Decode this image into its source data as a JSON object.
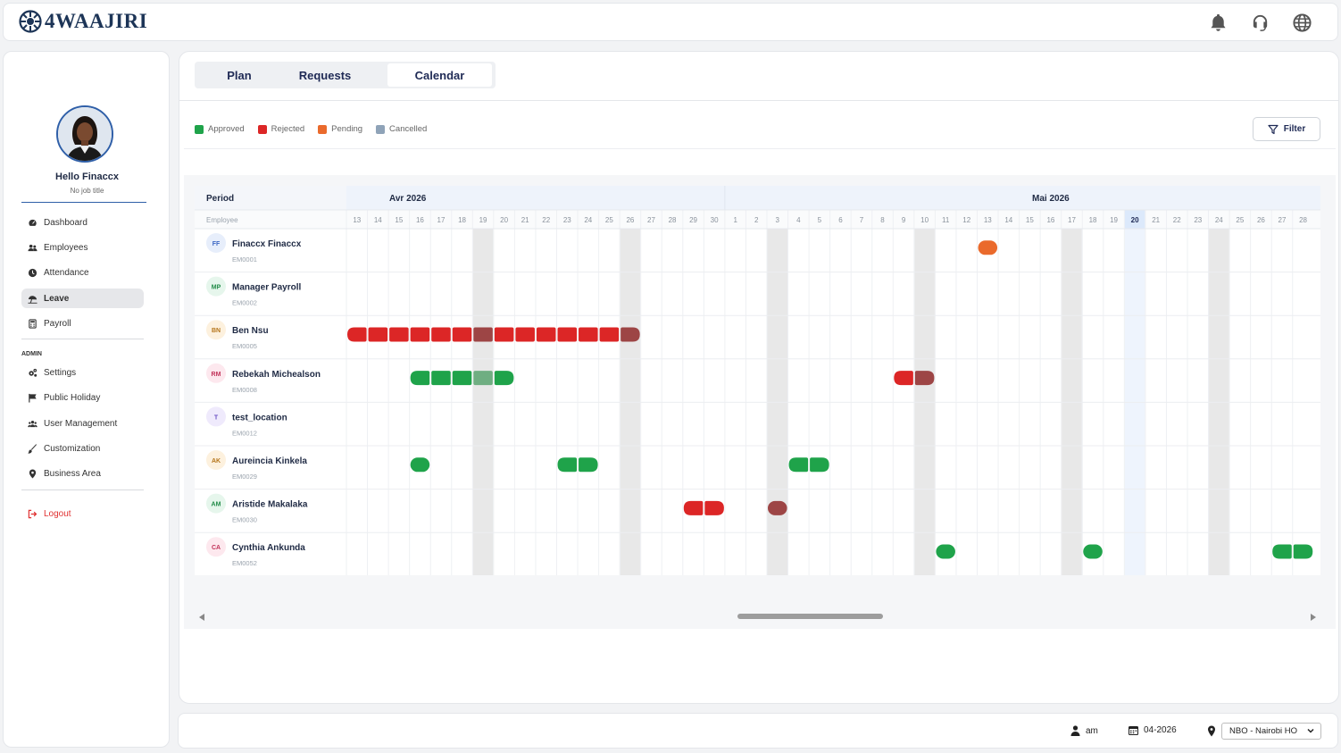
{
  "app": {
    "brand_number": "4",
    "brand_name": "WAAJIRI"
  },
  "topbar": {
    "icons": [
      "bell-icon",
      "headset-icon",
      "globe-icon"
    ]
  },
  "profile": {
    "greeting": "Hello Finaccx",
    "job_title": "No job title"
  },
  "nav": {
    "items": [
      {
        "label": "Dashboard",
        "icon": "dashboard-icon"
      },
      {
        "label": "Employees",
        "icon": "users-icon"
      },
      {
        "label": "Attendance",
        "icon": "clock-icon"
      },
      {
        "label": "Leave",
        "icon": "umbrella-icon",
        "active": true
      },
      {
        "label": "Payroll",
        "icon": "calculator-icon"
      }
    ],
    "admin_label": "ADMIN",
    "admin_items": [
      {
        "label": "Settings",
        "icon": "gears-icon"
      },
      {
        "label": "Public Holiday",
        "icon": "flag-icon"
      },
      {
        "label": "User Management",
        "icon": "user-group-icon"
      },
      {
        "label": "Customization",
        "icon": "brush-icon"
      },
      {
        "label": "Business Area",
        "icon": "location-pin-icon"
      }
    ],
    "logout": "Logout"
  },
  "tabs": [
    "Plan",
    "Requests",
    "Calendar"
  ],
  "active_tab": "Calendar",
  "legend": [
    {
      "label": "Approved",
      "color": "#1fa34a"
    },
    {
      "label": "Rejected",
      "color": "#dc2626"
    },
    {
      "label": "Pending",
      "color": "#ea6a2c"
    },
    {
      "label": "Cancelled",
      "color": "#8fa3b8"
    }
  ],
  "filter_label": "Filter",
  "calendar": {
    "period_label": "Period",
    "employee_label": "Employee",
    "months": [
      {
        "label": "Avr 2026",
        "days": [
          13,
          14,
          15,
          16,
          17,
          18,
          19,
          20,
          21,
          22,
          23,
          24,
          25,
          26,
          27,
          28,
          29,
          30
        ]
      },
      {
        "label": "Mai 2026",
        "days": [
          1,
          2,
          3,
          4,
          5,
          6,
          7,
          8,
          9,
          10,
          11,
          12,
          13,
          14,
          15,
          16,
          17,
          18,
          19,
          20,
          21,
          22,
          23,
          24,
          25,
          26,
          27,
          28
        ]
      }
    ],
    "weekend_days": [
      "Avr 19",
      "Avr 26",
      "Mai 3",
      "Mai 10",
      "Mai 17",
      "Mai 24"
    ],
    "today": "Mai 20",
    "employees": [
      {
        "initials": "FF",
        "name": "Finaccx Finaccx",
        "code": "EM0001",
        "avatar_bg": "#e7eefb",
        "avatar_fg": "#3b66c4",
        "leaves": [
          {
            "status": "pending",
            "days": [
              "Mai 13"
            ]
          }
        ]
      },
      {
        "initials": "MP",
        "name": "Manager Payroll",
        "code": "EM0002",
        "avatar_bg": "#e6f6ec",
        "avatar_fg": "#1f8a46",
        "leaves": []
      },
      {
        "initials": "BN",
        "name": "Ben Nsu",
        "code": "EM0005",
        "avatar_bg": "#fdf1de",
        "avatar_fg": "#b5751a",
        "leaves": [
          {
            "status": "rejected",
            "days": [
              "Avr 13",
              "Avr 14",
              "Avr 15",
              "Avr 16",
              "Avr 17",
              "Avr 18",
              "Avr 19",
              "Avr 20",
              "Avr 21",
              "Avr 22",
              "Avr 23",
              "Avr 24",
              "Avr 25",
              "Avr 26"
            ]
          }
        ]
      },
      {
        "initials": "RM",
        "name": "Rebekah Michealson",
        "code": "EM0008",
        "avatar_bg": "#fde8ee",
        "avatar_fg": "#c2335a",
        "leaves": [
          {
            "status": "approved",
            "days": [
              "Avr 16",
              "Avr 17",
              "Avr 18",
              "Avr 19",
              "Avr 20"
            ]
          },
          {
            "status": "rejected",
            "days": [
              "Mai 9",
              "Mai 10"
            ]
          }
        ]
      },
      {
        "initials": "T",
        "name": "test_location",
        "code": "EM0012",
        "avatar_bg": "#efeafc",
        "avatar_fg": "#6a4fc4",
        "leaves": []
      },
      {
        "initials": "AK",
        "name": "Aureincia Kinkela",
        "code": "EM0029",
        "avatar_bg": "#fdf1de",
        "avatar_fg": "#b5751a",
        "leaves": [
          {
            "status": "approved",
            "days": [
              "Avr 16"
            ]
          },
          {
            "status": "approved",
            "days": [
              "Avr 23",
              "Avr 24"
            ]
          },
          {
            "status": "approved",
            "days": [
              "Mai 4",
              "Mai 5"
            ]
          }
        ]
      },
      {
        "initials": "AM",
        "name": "Aristide Makalaka",
        "code": "EM0030",
        "avatar_bg": "#e6f6ec",
        "avatar_fg": "#1f8a46",
        "leaves": [
          {
            "status": "rejected",
            "days": [
              "Avr 29",
              "Avr 30"
            ]
          },
          {
            "status": "rejected",
            "days": [
              "Mai 3"
            ]
          }
        ]
      },
      {
        "initials": "CA",
        "name": "Cynthia Ankunda",
        "code": "EM0052",
        "avatar_bg": "#fde8ee",
        "avatar_fg": "#c2335a",
        "leaves": [
          {
            "status": "approved",
            "days": [
              "Mai 11"
            ]
          },
          {
            "status": "approved",
            "days": [
              "Mai 18"
            ]
          },
          {
            "status": "approved",
            "days": [
              "Mai 27",
              "Mai 28"
            ]
          }
        ]
      }
    ]
  },
  "bottombar": {
    "user": "am",
    "period": "04-2026",
    "location": "NBO - Nairobi HO"
  }
}
